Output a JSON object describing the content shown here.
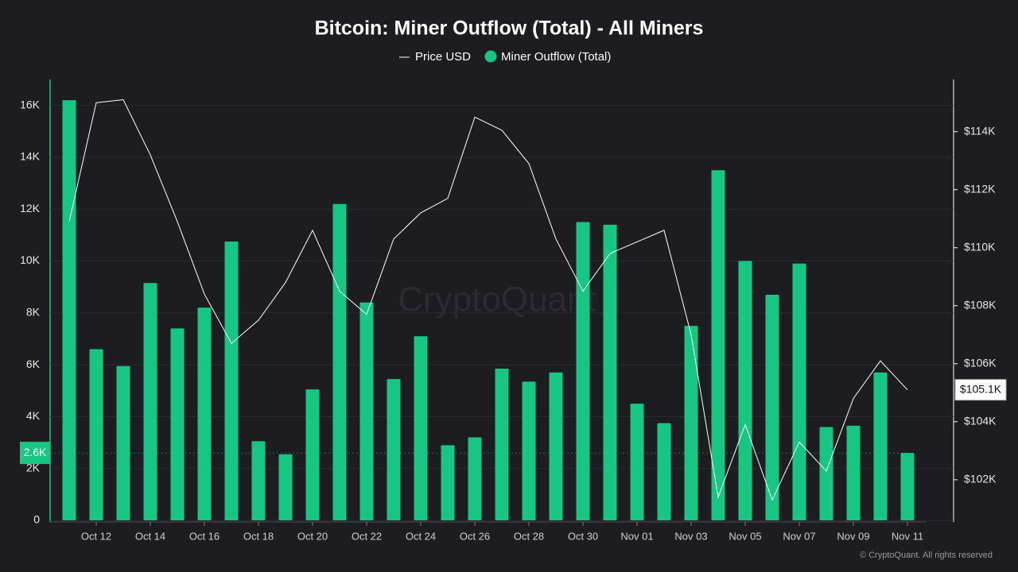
{
  "chart_data": {
    "type": "bar",
    "title": "Bitcoin: Miner Outflow (Total) - All Miners",
    "categories": [
      null,
      "Oct 12",
      null,
      "Oct 14",
      null,
      "Oct 16",
      null,
      "Oct 18",
      null,
      "Oct 20",
      null,
      "Oct 22",
      null,
      "Oct 24",
      null,
      "Oct 26",
      null,
      "Oct 28",
      null,
      "Oct 30",
      null,
      "Nov 01",
      null,
      "Nov 03",
      null,
      "Nov 05",
      null,
      "Nov 07",
      null,
      "Nov 09",
      null,
      "Nov 11"
    ],
    "series": [
      {
        "name": "Price USD",
        "type": "line",
        "axis": "y2",
        "color": "#ffffff",
        "values": [
          110900,
          115000,
          115100,
          113200,
          110900,
          108400,
          106700,
          107500,
          108800,
          110600,
          108500,
          107700,
          110300,
          111200,
          111700,
          114500,
          114050,
          112900,
          110300,
          108500,
          109800,
          110200,
          110600,
          107000,
          101400,
          103900,
          101300,
          103300,
          102300,
          104800,
          106100,
          105100
        ],
        "value_labels": [
          null,
          null,
          null,
          null,
          null,
          null,
          null,
          null,
          null,
          null,
          null,
          null,
          null,
          null,
          null,
          null,
          null,
          null,
          null,
          null,
          null,
          null,
          null,
          null,
          null,
          null,
          null,
          null,
          null,
          null,
          null,
          "$105.1K"
        ]
      },
      {
        "name": "Miner Outflow (Total)",
        "type": "bar",
        "color": "#16c784",
        "values": [
          16200,
          6600,
          5950,
          9150,
          7400,
          8200,
          10750,
          3050,
          2550,
          5050,
          12200,
          8400,
          5450,
          7100,
          2900,
          3200,
          5850,
          5350,
          5700,
          11500,
          11400,
          4500,
          3750,
          7500,
          13500,
          10000,
          8700,
          9900,
          3600,
          3650,
          5700,
          2600
        ],
        "value_labels": [
          null,
          null,
          null,
          null,
          null,
          null,
          null,
          null,
          null,
          null,
          null,
          null,
          null,
          null,
          null,
          null,
          null,
          null,
          null,
          null,
          null,
          null,
          null,
          null,
          null,
          null,
          null,
          null,
          null,
          null,
          null,
          "2.6K"
        ]
      }
    ],
    "ylim": [
      0,
      17000
    ],
    "yticks": [
      0,
      {
        "value": 2000,
        "label": "2K"
      },
      {
        "value": 4000,
        "label": "4K"
      },
      {
        "value": 6000,
        "label": "6K"
      },
      {
        "value": 8000,
        "label": "8K"
      },
      {
        "value": 10000,
        "label": "10K"
      },
      {
        "value": 12000,
        "label": "12K"
      },
      {
        "value": 14000,
        "label": "14K"
      },
      {
        "value": 16000,
        "label": "16K"
      }
    ],
    "y2lim": [
      100600,
      115800
    ],
    "y2ticks": [
      {
        "value": 102000,
        "label": "$102K"
      },
      {
        "value": 104000,
        "label": "$104K"
      },
      {
        "value": 106000,
        "label": "$106K"
      },
      {
        "value": 108000,
        "label": "$108K"
      },
      {
        "value": 110000,
        "label": "$110K"
      },
      {
        "value": 112000,
        "label": "$112K"
      },
      {
        "value": 114000,
        "label": "$114K"
      }
    ],
    "grid": true,
    "watermark": "CryptoQuant",
    "credit": "© CryptoQuant. All rights reserved"
  }
}
